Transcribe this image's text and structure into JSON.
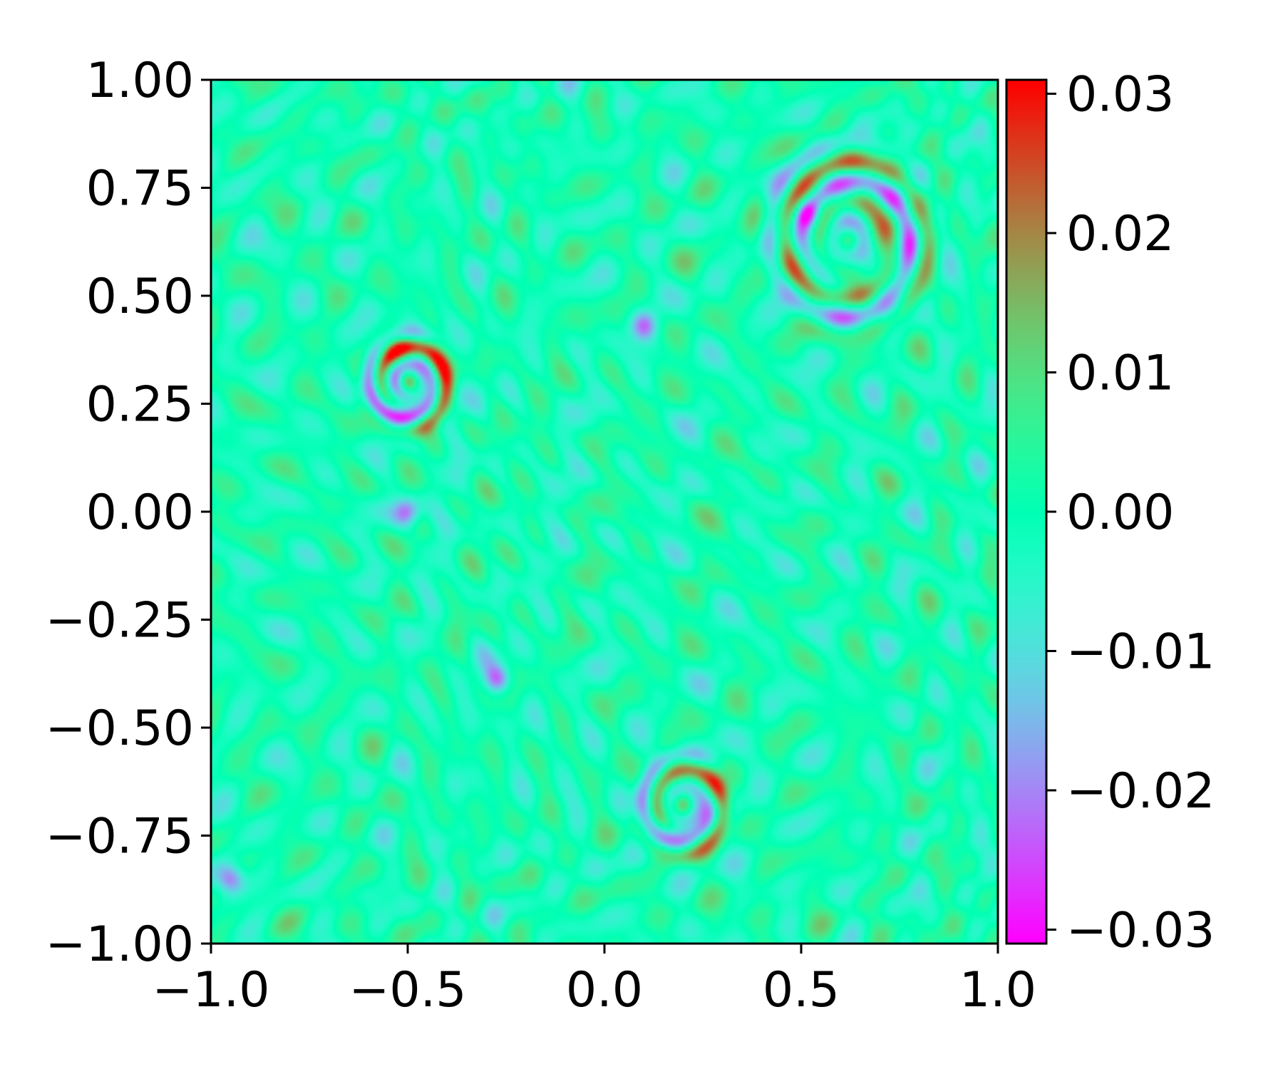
{
  "chart_data": {
    "type": "heatmap",
    "title": "",
    "xlabel": "",
    "ylabel": "",
    "xlim": [
      -1.0,
      1.0
    ],
    "ylim": [
      -1.0,
      1.0
    ],
    "x_ticks": [
      -1.0,
      -0.5,
      0.0,
      0.5,
      1.0
    ],
    "x_tick_labels": [
      "−1.0",
      "−0.5",
      "0.0",
      "0.5",
      "1.0"
    ],
    "y_ticks": [
      1.0,
      0.75,
      0.5,
      0.25,
      0.0,
      -0.25,
      -0.5,
      -0.75,
      -1.0
    ],
    "y_tick_labels": [
      "1.00",
      "0.75",
      "0.50",
      "0.25",
      "0.00",
      "−0.25",
      "−0.50",
      "−0.75",
      "−1.00"
    ],
    "colorbar": {
      "colormap": "rainbow",
      "range": [
        -0.031,
        0.031
      ],
      "ticks": [
        0.03,
        0.02,
        0.01,
        0.0,
        -0.01,
        -0.02,
        -0.03
      ],
      "tick_labels": [
        "0.03",
        "0.02",
        "0.01",
        "0.00",
        "−0.01",
        "−0.02",
        "−0.03"
      ]
    },
    "grid": false,
    "features": [
      {
        "kind": "ring",
        "x": -0.5,
        "y": 0.3,
        "radius": 0.085,
        "amplitude": 0.031
      },
      {
        "kind": "ring",
        "x": 0.2,
        "y": -0.68,
        "radius": 0.09,
        "amplitude": 0.022
      },
      {
        "kind": "ring",
        "x": 0.62,
        "y": 0.63,
        "radius": 0.16,
        "amplitude": 0.02
      },
      {
        "kind": "spot",
        "x": 0.52,
        "y": 0.69,
        "value": -0.024
      },
      {
        "kind": "spot",
        "x": -0.5,
        "y": 0.0,
        "value": -0.025
      },
      {
        "kind": "spot",
        "x": -0.27,
        "y": -0.39,
        "value": -0.025
      },
      {
        "kind": "spot",
        "x": 0.1,
        "y": 0.43,
        "value": -0.02
      },
      {
        "kind": "spot",
        "x": -0.95,
        "y": -0.85,
        "value": -0.024
      }
    ],
    "background": "dense wavy interference pattern of small positive and negative blobs, amplitude about 0.012"
  },
  "colors": {
    "axis": "#000000",
    "background": "#ffffff"
  }
}
